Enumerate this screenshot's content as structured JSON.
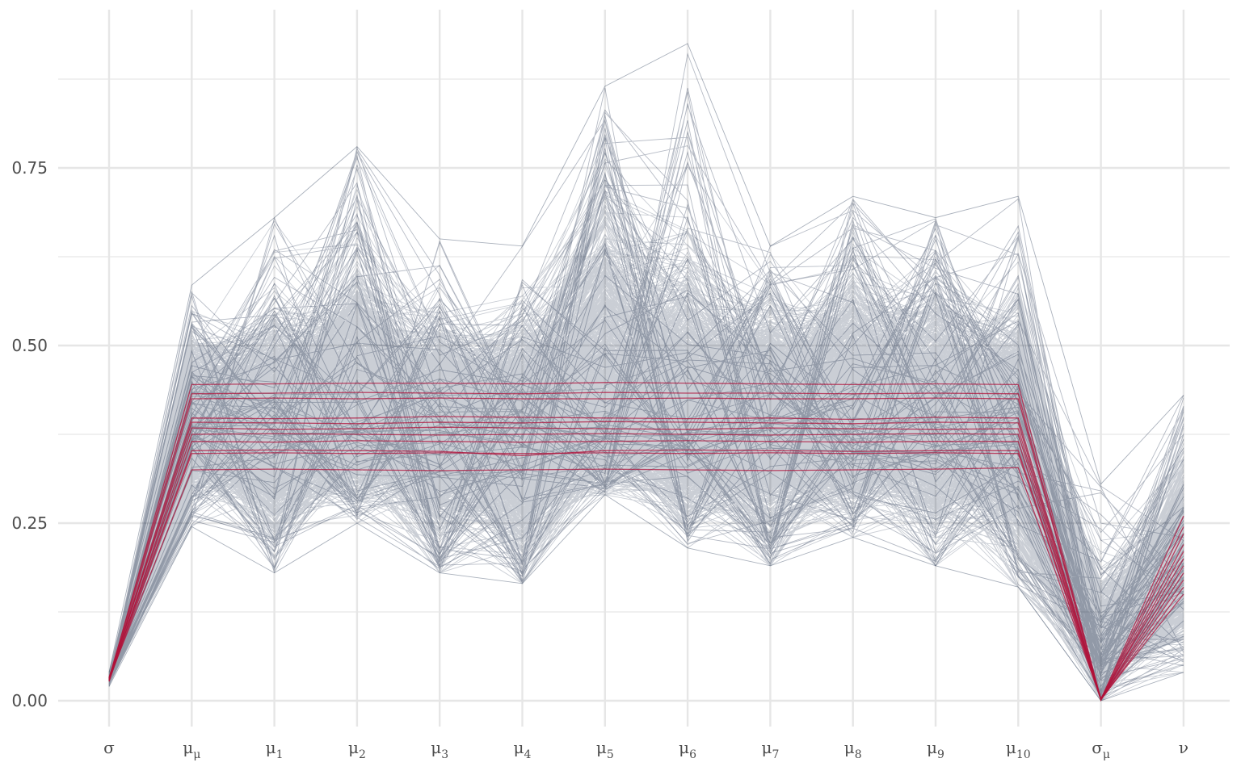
{
  "chart_data": {
    "type": "line",
    "subtype": "parallel-coordinates",
    "title": "",
    "xlabel": "",
    "ylabel": "",
    "ylim": [
      -0.03,
      0.98
    ],
    "y_ticks": [
      {
        "value": 0.0,
        "label": "0.00"
      },
      {
        "value": 0.25,
        "label": "0.25"
      },
      {
        "value": 0.5,
        "label": "0.50"
      },
      {
        "value": 0.75,
        "label": "0.75"
      }
    ],
    "y_minor_gridlines": [
      0.125,
      0.375,
      0.625,
      0.875
    ],
    "grid": true,
    "legend": "none",
    "categories": [
      {
        "base": "σ",
        "sub": ""
      },
      {
        "base": "μ",
        "sub": "μ"
      },
      {
        "base": "μ",
        "sub": "1"
      },
      {
        "base": "μ",
        "sub": "2"
      },
      {
        "base": "μ",
        "sub": "3"
      },
      {
        "base": "μ",
        "sub": "4"
      },
      {
        "base": "μ",
        "sub": "5"
      },
      {
        "base": "μ",
        "sub": "6"
      },
      {
        "base": "μ",
        "sub": "7"
      },
      {
        "base": "μ",
        "sub": "8"
      },
      {
        "base": "μ",
        "sub": "9"
      },
      {
        "base": "μ",
        "sub": "10"
      },
      {
        "base": "σ",
        "sub": "μ"
      },
      {
        "base": "ν",
        "sub": ""
      }
    ],
    "band": {
      "upper_envelope": [
        0.04,
        0.585,
        0.68,
        0.78,
        0.65,
        0.64,
        0.865,
        0.925,
        0.64,
        0.71,
        0.68,
        0.71,
        0.305,
        0.43
      ],
      "upper_dense": [
        0.035,
        0.51,
        0.54,
        0.63,
        0.53,
        0.53,
        0.71,
        0.62,
        0.57,
        0.6,
        0.57,
        0.53,
        0.17,
        0.33
      ],
      "median": [
        0.03,
        0.39,
        0.39,
        0.39,
        0.39,
        0.39,
        0.39,
        0.39,
        0.39,
        0.39,
        0.39,
        0.39,
        0.06,
        0.19
      ],
      "lower_dense": [
        0.025,
        0.29,
        0.23,
        0.29,
        0.22,
        0.2,
        0.31,
        0.26,
        0.23,
        0.27,
        0.24,
        0.21,
        0.01,
        0.09
      ],
      "lower_envelope": [
        0.02,
        0.245,
        0.18,
        0.25,
        0.18,
        0.165,
        0.29,
        0.215,
        0.19,
        0.23,
        0.19,
        0.16,
        0.0,
        0.04
      ],
      "n_draws": 1400
    },
    "highlight": {
      "x_indices": [
        0,
        1,
        2,
        3,
        4,
        5,
        6,
        7,
        8,
        9,
        10,
        11,
        12,
        13
      ],
      "lines": [
        [
          0.03,
          0.445,
          0.446,
          0.447,
          0.447,
          0.446,
          0.448,
          0.447,
          0.446,
          0.445,
          0.446,
          0.445,
          0.002,
          0.26
        ],
        [
          0.032,
          0.432,
          0.433,
          0.434,
          0.433,
          0.432,
          0.434,
          0.433,
          0.433,
          0.432,
          0.433,
          0.432,
          0.002,
          0.245
        ],
        [
          0.028,
          0.425,
          0.426,
          0.425,
          0.426,
          0.425,
          0.425,
          0.426,
          0.425,
          0.425,
          0.426,
          0.425,
          0.001,
          0.235
        ],
        [
          0.031,
          0.398,
          0.397,
          0.398,
          0.4,
          0.399,
          0.398,
          0.397,
          0.398,
          0.396,
          0.399,
          0.398,
          0.002,
          0.22
        ],
        [
          0.029,
          0.392,
          0.391,
          0.39,
          0.392,
          0.391,
          0.393,
          0.392,
          0.391,
          0.39,
          0.392,
          0.391,
          0.001,
          0.21
        ],
        [
          0.033,
          0.384,
          0.382,
          0.383,
          0.385,
          0.384,
          0.383,
          0.382,
          0.384,
          0.383,
          0.382,
          0.383,
          0.003,
          0.2
        ],
        [
          0.027,
          0.375,
          0.376,
          0.375,
          0.374,
          0.375,
          0.376,
          0.375,
          0.374,
          0.375,
          0.376,
          0.375,
          0.001,
          0.19
        ],
        [
          0.03,
          0.365,
          0.364,
          0.366,
          0.365,
          0.364,
          0.365,
          0.366,
          0.365,
          0.364,
          0.365,
          0.365,
          0.002,
          0.18
        ],
        [
          0.032,
          0.352,
          0.353,
          0.352,
          0.351,
          0.345,
          0.352,
          0.353,
          0.352,
          0.351,
          0.352,
          0.352,
          0.002,
          0.17
        ],
        [
          0.028,
          0.348,
          0.349,
          0.348,
          0.349,
          0.348,
          0.349,
          0.348,
          0.349,
          0.348,
          0.349,
          0.348,
          0.001,
          0.16
        ],
        [
          0.031,
          0.325,
          0.326,
          0.325,
          0.324,
          0.325,
          0.326,
          0.325,
          0.324,
          0.325,
          0.326,
          0.328,
          0.002,
          0.15
        ]
      ]
    },
    "colors": {
      "draws": "#0c1f40",
      "highlight": "#b0123a",
      "grid": "#e6e6e6",
      "tick_text": "#4d4d4d",
      "background": "#ffffff"
    }
  }
}
